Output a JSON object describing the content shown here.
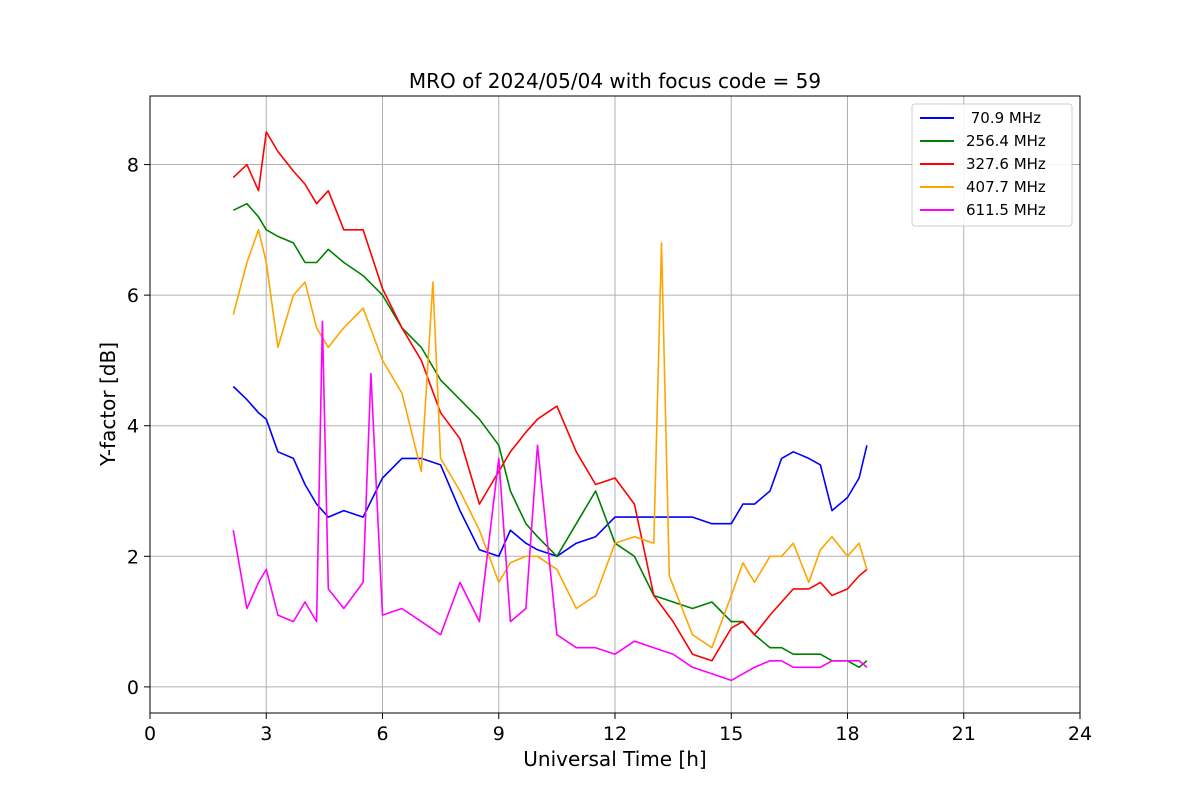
{
  "chart_data": {
    "type": "line",
    "title": "MRO of 2024/05/04 with focus code = 59",
    "xlabel": "Universal Time [h]",
    "ylabel": "Y-factor [dB]",
    "xlim": [
      0,
      24
    ],
    "ylim": [
      -0.4,
      9.05
    ],
    "xticks": [
      0,
      3,
      6,
      9,
      12,
      15,
      18,
      21,
      24
    ],
    "yticks": [
      0,
      2,
      4,
      6,
      8
    ],
    "grid": true,
    "legend_position": "top-right",
    "series": [
      {
        "name": " 70.9 MHz",
        "color": "#0000ff",
        "x": [
          2.15,
          2.5,
          2.8,
          3.0,
          3.3,
          3.7,
          4.0,
          4.3,
          4.6,
          5.0,
          5.5,
          6.0,
          6.5,
          7.0,
          7.5,
          8.0,
          8.5,
          9.0,
          9.3,
          9.7,
          10.0,
          10.5,
          11.0,
          11.5,
          12.0,
          12.5,
          13.0,
          13.5,
          14.0,
          14.5,
          15.0,
          15.3,
          15.6,
          16.0,
          16.3,
          16.6,
          17.0,
          17.3,
          17.6,
          18.0,
          18.3,
          18.5
        ],
        "y": [
          4.6,
          4.4,
          4.2,
          4.1,
          3.6,
          3.5,
          3.1,
          2.8,
          2.6,
          2.7,
          2.6,
          3.2,
          3.5,
          3.5,
          3.4,
          2.7,
          2.1,
          2.0,
          2.4,
          2.2,
          2.1,
          2.0,
          2.2,
          2.3,
          2.6,
          2.6,
          2.6,
          2.6,
          2.6,
          2.5,
          2.5,
          2.8,
          2.8,
          3.0,
          3.5,
          3.6,
          3.5,
          3.4,
          2.7,
          2.9,
          3.2,
          3.7
        ]
      },
      {
        "name": "256.4 MHz",
        "color": "#008000",
        "x": [
          2.15,
          2.5,
          2.8,
          3.0,
          3.3,
          3.7,
          4.0,
          4.3,
          4.6,
          5.0,
          5.5,
          6.0,
          6.5,
          7.0,
          7.5,
          8.0,
          8.5,
          9.0,
          9.3,
          9.7,
          10.0,
          10.5,
          11.0,
          11.5,
          12.0,
          12.5,
          13.0,
          13.5,
          14.0,
          14.5,
          15.0,
          15.3,
          15.6,
          16.0,
          16.3,
          16.6,
          17.0,
          17.3,
          17.6,
          18.0,
          18.3,
          18.5
        ],
        "y": [
          7.3,
          7.4,
          7.2,
          7.0,
          6.9,
          6.8,
          6.5,
          6.5,
          6.7,
          6.5,
          6.3,
          6.0,
          5.5,
          5.2,
          4.7,
          4.4,
          4.1,
          3.7,
          3.0,
          2.5,
          2.3,
          2.0,
          2.5,
          3.0,
          2.2,
          2.0,
          1.4,
          1.3,
          1.2,
          1.3,
          1.0,
          1.0,
          0.8,
          0.6,
          0.6,
          0.5,
          0.5,
          0.5,
          0.4,
          0.4,
          0.3,
          0.4
        ]
      },
      {
        "name": "327.6 MHz",
        "color": "#ff0000",
        "x": [
          2.15,
          2.5,
          2.8,
          3.0,
          3.3,
          3.7,
          4.0,
          4.3,
          4.6,
          5.0,
          5.5,
          6.0,
          6.5,
          7.0,
          7.5,
          8.0,
          8.5,
          9.0,
          9.3,
          9.7,
          10.0,
          10.5,
          11.0,
          11.5,
          12.0,
          12.5,
          13.0,
          13.5,
          14.0,
          14.5,
          15.0,
          15.3,
          15.6,
          16.0,
          16.3,
          16.6,
          17.0,
          17.3,
          17.6,
          18.0,
          18.3,
          18.5
        ],
        "y": [
          7.8,
          8.0,
          7.6,
          8.5,
          8.2,
          7.9,
          7.7,
          7.4,
          7.6,
          7.0,
          7.0,
          6.1,
          5.5,
          5.0,
          4.2,
          3.8,
          2.8,
          3.3,
          3.6,
          3.9,
          4.1,
          4.3,
          3.6,
          3.1,
          3.2,
          2.8,
          1.4,
          1.0,
          0.5,
          0.4,
          0.9,
          1.0,
          0.8,
          1.1,
          1.3,
          1.5,
          1.5,
          1.6,
          1.4,
          1.5,
          1.7,
          1.8
        ]
      },
      {
        "name": "407.7 MHz",
        "color": "#ffa500",
        "x": [
          2.15,
          2.5,
          2.8,
          3.0,
          3.3,
          3.7,
          4.0,
          4.3,
          4.6,
          5.0,
          5.5,
          6.0,
          6.5,
          7.0,
          7.3,
          7.5,
          8.0,
          8.5,
          9.0,
          9.3,
          9.7,
          10.0,
          10.5,
          11.0,
          11.5,
          12.0,
          12.5,
          13.0,
          13.2,
          13.4,
          14.0,
          14.5,
          15.0,
          15.3,
          15.6,
          16.0,
          16.3,
          16.6,
          17.0,
          17.3,
          17.6,
          18.0,
          18.3,
          18.5
        ],
        "y": [
          5.7,
          6.5,
          7.0,
          6.5,
          5.2,
          6.0,
          6.2,
          5.5,
          5.2,
          5.5,
          5.8,
          5.0,
          4.5,
          3.3,
          6.2,
          3.5,
          3.0,
          2.4,
          1.6,
          1.9,
          2.0,
          2.0,
          1.8,
          1.2,
          1.4,
          2.2,
          2.3,
          2.2,
          6.8,
          1.7,
          0.8,
          0.6,
          1.4,
          1.9,
          1.6,
          2.0,
          2.0,
          2.2,
          1.6,
          2.1,
          2.3,
          2.0,
          2.2,
          1.8
        ]
      },
      {
        "name": "611.5 MHz",
        "color": "#ff00ff",
        "x": [
          2.15,
          2.5,
          2.8,
          3.0,
          3.3,
          3.7,
          4.0,
          4.3,
          4.45,
          4.6,
          5.0,
          5.5,
          5.7,
          6.0,
          6.5,
          7.0,
          7.5,
          8.0,
          8.5,
          9.0,
          9.3,
          9.7,
          10.0,
          10.5,
          11.0,
          11.5,
          12.0,
          12.5,
          13.0,
          13.5,
          14.0,
          14.5,
          15.0,
          15.3,
          15.6,
          16.0,
          16.3,
          16.6,
          17.0,
          17.3,
          17.6,
          18.0,
          18.3,
          18.5
        ],
        "y": [
          2.4,
          1.2,
          1.6,
          1.8,
          1.1,
          1.0,
          1.3,
          1.0,
          5.6,
          1.5,
          1.2,
          1.6,
          4.8,
          1.1,
          1.2,
          1.0,
          0.8,
          1.6,
          1.0,
          3.5,
          1.0,
          1.2,
          3.7,
          0.8,
          0.6,
          0.6,
          0.5,
          0.7,
          0.6,
          0.5,
          0.3,
          0.2,
          0.1,
          0.2,
          0.3,
          0.4,
          0.4,
          0.3,
          0.3,
          0.3,
          0.4,
          0.4,
          0.4,
          0.3
        ]
      }
    ]
  }
}
